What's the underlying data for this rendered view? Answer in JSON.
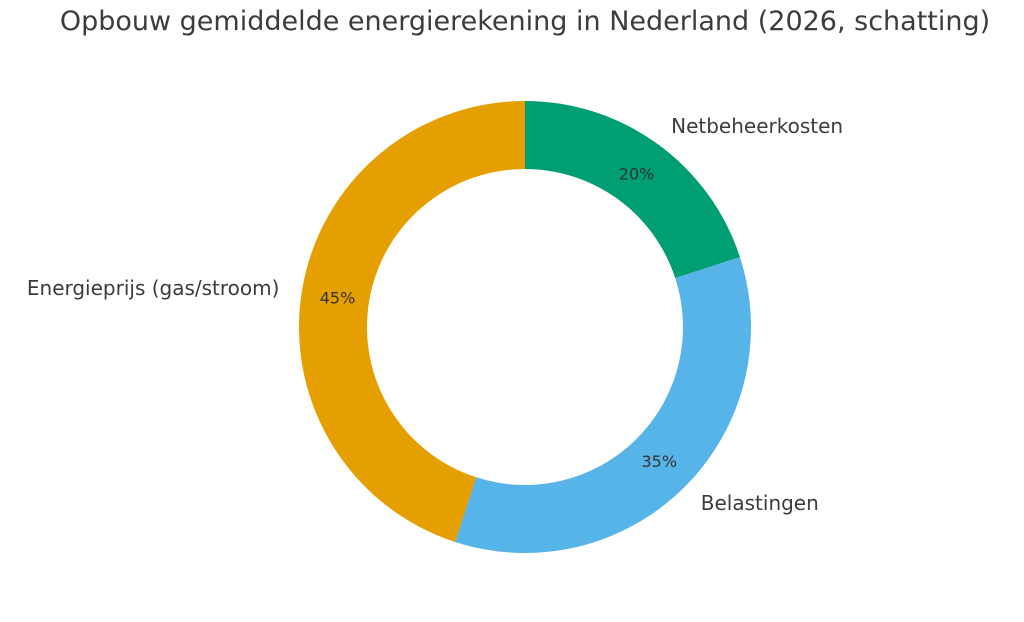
{
  "chart_data": {
    "type": "pie",
    "variant": "donut",
    "title": "Opbouw gemiddelde energierekening in Nederland (2026, schatting)",
    "categories": [
      "Netbeheerkosten",
      "Belastingen",
      "Energieprijs (gas/stroom)"
    ],
    "values": [
      20,
      35,
      45
    ],
    "value_labels": [
      "20%",
      "35%",
      "45%"
    ],
    "colors": [
      "#009E73",
      "#56B4E9",
      "#E69F00"
    ],
    "start_angle_deg": 90,
    "direction": "clockwise",
    "legend": "none (labels placed outside slices)"
  },
  "title": "Opbouw gemiddelde energierekening in Nederland (2026, schatting)"
}
